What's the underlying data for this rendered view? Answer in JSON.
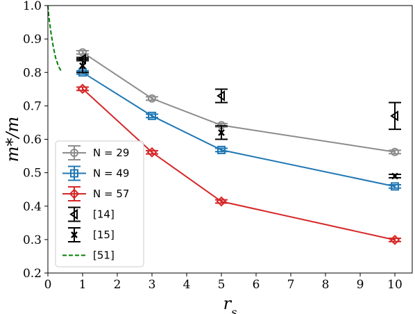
{
  "chart_data": {
    "type": "line",
    "xlabel": "r_s",
    "ylabel": "m*/m",
    "xlim": [
      0,
      10.5
    ],
    "ylim": [
      0.2,
      1.0
    ],
    "xticks": [
      0,
      1,
      2,
      3,
      4,
      5,
      6,
      7,
      8,
      9,
      10
    ],
    "yticks": [
      0.2,
      0.3,
      0.4,
      0.5,
      0.6,
      0.7,
      0.8,
      0.9,
      1.0
    ],
    "grid": false,
    "legend_position": "lower-left",
    "series": [
      {
        "name": "N = 29",
        "color": "#8c8c8c",
        "marker": "circle",
        "style": "solid",
        "x": [
          1,
          3,
          5,
          10
        ],
        "y": [
          0.86,
          0.722,
          0.642,
          0.562
        ],
        "err": [
          0.005,
          0.005,
          0.005,
          0.005
        ]
      },
      {
        "name": "N = 49",
        "color": "#1f77b4",
        "marker": "square",
        "style": "solid",
        "x": [
          1,
          3,
          5,
          10
        ],
        "y": [
          0.8,
          0.67,
          0.568,
          0.459
        ],
        "err": [
          0.005,
          0.005,
          0.005,
          0.005
        ]
      },
      {
        "name": "N = 57",
        "color": "#d62728",
        "marker": "diamond",
        "style": "solid",
        "x": [
          1,
          3,
          5,
          10
        ],
        "y": [
          0.751,
          0.561,
          0.414,
          0.299
        ],
        "err": [
          0.005,
          0.005,
          0.005,
          0.005
        ]
      },
      {
        "name": "[14]",
        "color": "#000000",
        "marker": "triangle-left",
        "style": "none",
        "x": [
          1,
          5,
          10
        ],
        "y": [
          0.84,
          0.73,
          0.67
        ],
        "err": [
          0.005,
          0.02,
          0.04
        ]
      },
      {
        "name": "[15]",
        "color": "#000000",
        "marker": "x",
        "style": "none",
        "x": [
          1,
          5,
          10
        ],
        "y": [
          0.82,
          0.62,
          0.49
        ],
        "err": [
          0.02,
          0.02,
          0.005
        ]
      },
      {
        "name": "[51]",
        "color": "#008000",
        "marker": "none",
        "style": "dashed",
        "x": [
          0.0,
          0.03,
          0.08,
          0.15,
          0.22,
          0.3,
          0.4
        ],
        "y": [
          1.0,
          0.965,
          0.925,
          0.88,
          0.845,
          0.82,
          0.8
        ]
      }
    ]
  }
}
